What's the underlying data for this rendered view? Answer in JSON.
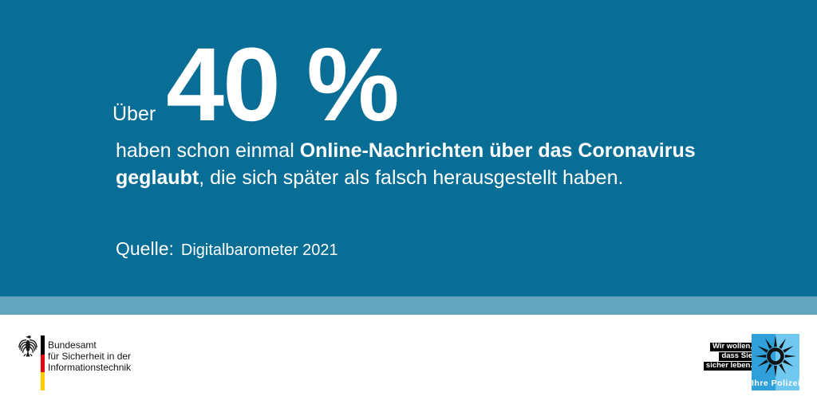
{
  "colors": {
    "background": "#086E96",
    "band": "#63A5BD",
    "police_dark": "#2FA0DA",
    "police_light": "#70C8F1",
    "flag_black": "#000000",
    "flag_red": "#E30613",
    "flag_gold": "#FFCC00"
  },
  "headline": {
    "prefix": "Über",
    "value": "40 %"
  },
  "statement": {
    "segments": [
      {
        "text": "haben schon einmal ",
        "bold": false
      },
      {
        "text": "Online-Nachrichten über das Coronavirus",
        "bold": true
      },
      {
        "br": true
      },
      {
        "text": "geglaubt",
        "bold": true
      },
      {
        "text": ", die sich später als falsch herausgestellt haben.",
        "bold": false
      }
    ]
  },
  "source": {
    "label": "Quelle:",
    "value": "Digitalbarometer 2021"
  },
  "bsi_logo": {
    "lines": [
      "Bundesamt",
      "für Sicherheit in der",
      "Informationstechnik"
    ]
  },
  "police_logo": {
    "slogan_lines": [
      "Wir wollen,",
      "dass Sie",
      "sicher leben."
    ],
    "label": "Ihre Polizei"
  }
}
